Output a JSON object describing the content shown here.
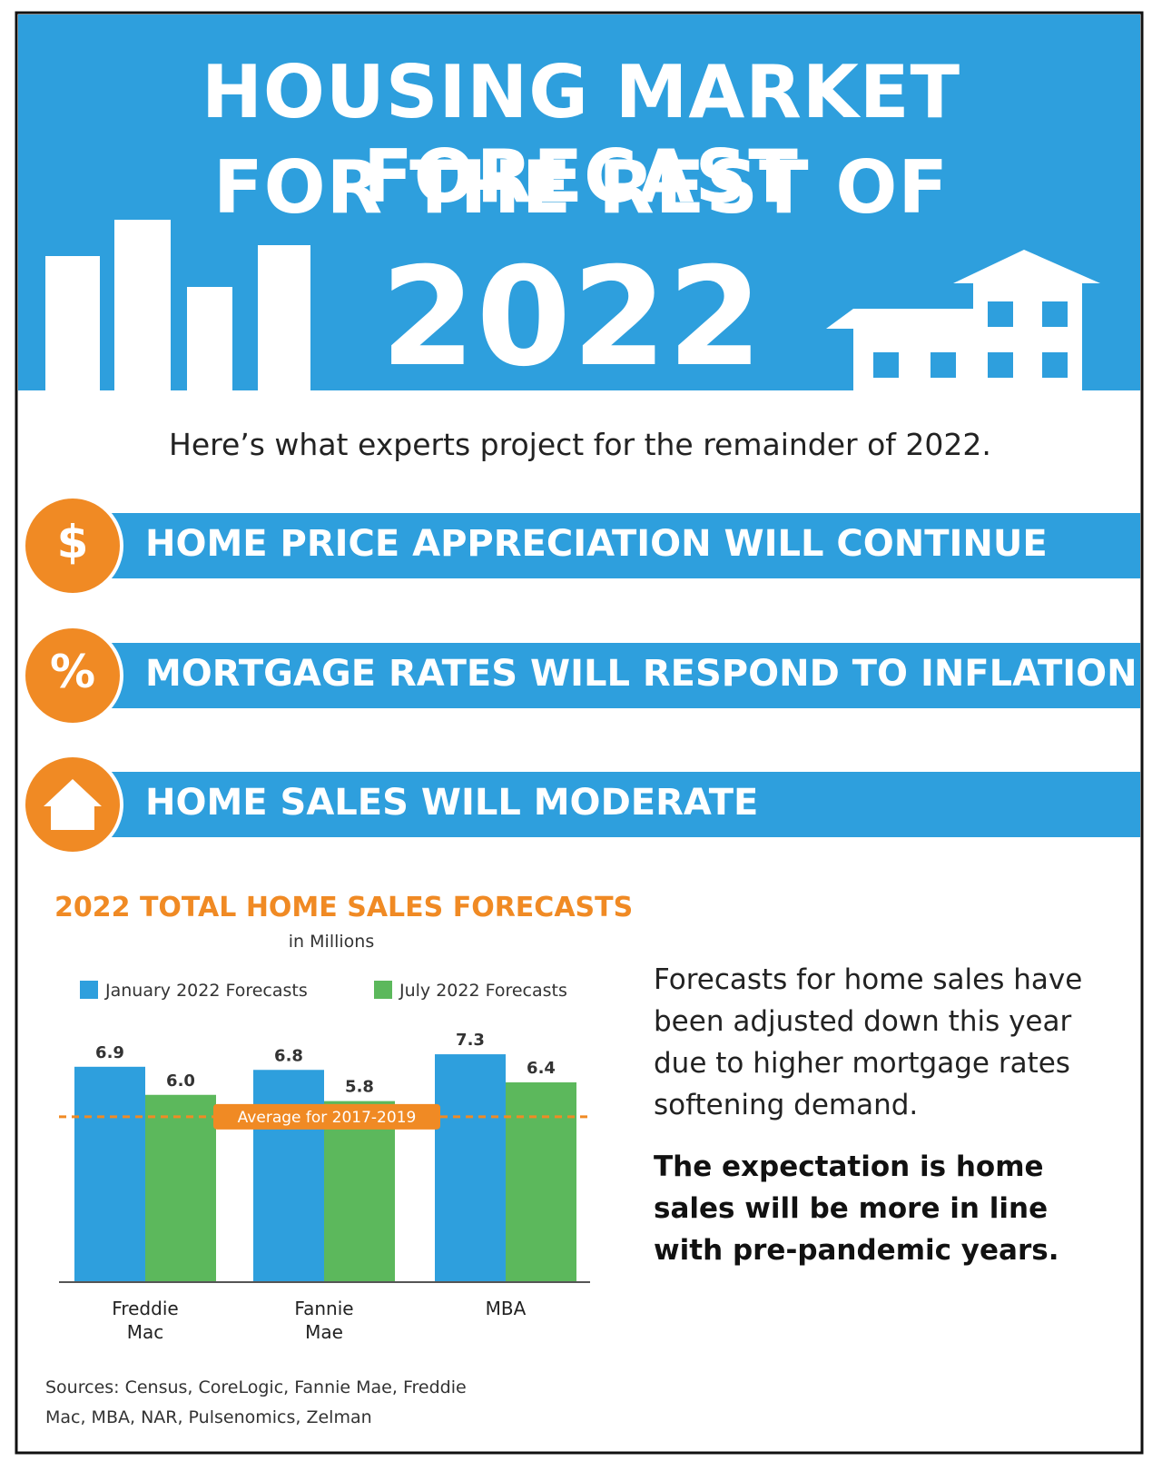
{
  "header": {
    "title_line1": "HOUSING MARKET FORECAST",
    "title_line2": "FOR THE REST OF",
    "year": "2022"
  },
  "subtitle": "Here’s what experts project for the remainder of 2022.",
  "items": [
    {
      "icon": "$",
      "text": "HOME PRICE APPRECIATION WILL CONTINUE"
    },
    {
      "icon": "%",
      "text": "MORTGAGE RATES WILL RESPOND TO INFLATION"
    },
    {
      "text": "HOME SALES WILL MODERATE"
    }
  ],
  "chart_data": {
    "type": "bar",
    "title": "2022 TOTAL HOME SALES FORECASTS",
    "subtitle": "in Millions",
    "categories": [
      "Freddie Mac",
      "Fannie Mae",
      "MBA"
    ],
    "series": [
      {
        "name": "January 2022 Forecasts",
        "color": "#2e9fdd",
        "values": [
          6.9,
          6.8,
          7.3
        ]
      },
      {
        "name": "July 2022 Forecasts",
        "color": "#5cb85c",
        "values": [
          6.0,
          5.8,
          6.4
        ],
        "value_labels": [
          "6.0",
          "5.8",
          "6.4"
        ]
      }
    ],
    "ylim": [
      0,
      8
    ],
    "reference_line": {
      "value": 5.3,
      "label": "Average for 2017-2019",
      "color": "#f08a24"
    }
  },
  "commentary": {
    "paragraph1": "Forecasts for home sales have been adjusted down this year due to higher mortgage rates softening demand.",
    "paragraph2": "The expectation is home sales will be more in line with pre-pandemic years."
  },
  "sources": "Sources: Census, CoreLogic, Fannie Mae, Freddie Mac, MBA, NAR, Pulsenomics, Zelman"
}
